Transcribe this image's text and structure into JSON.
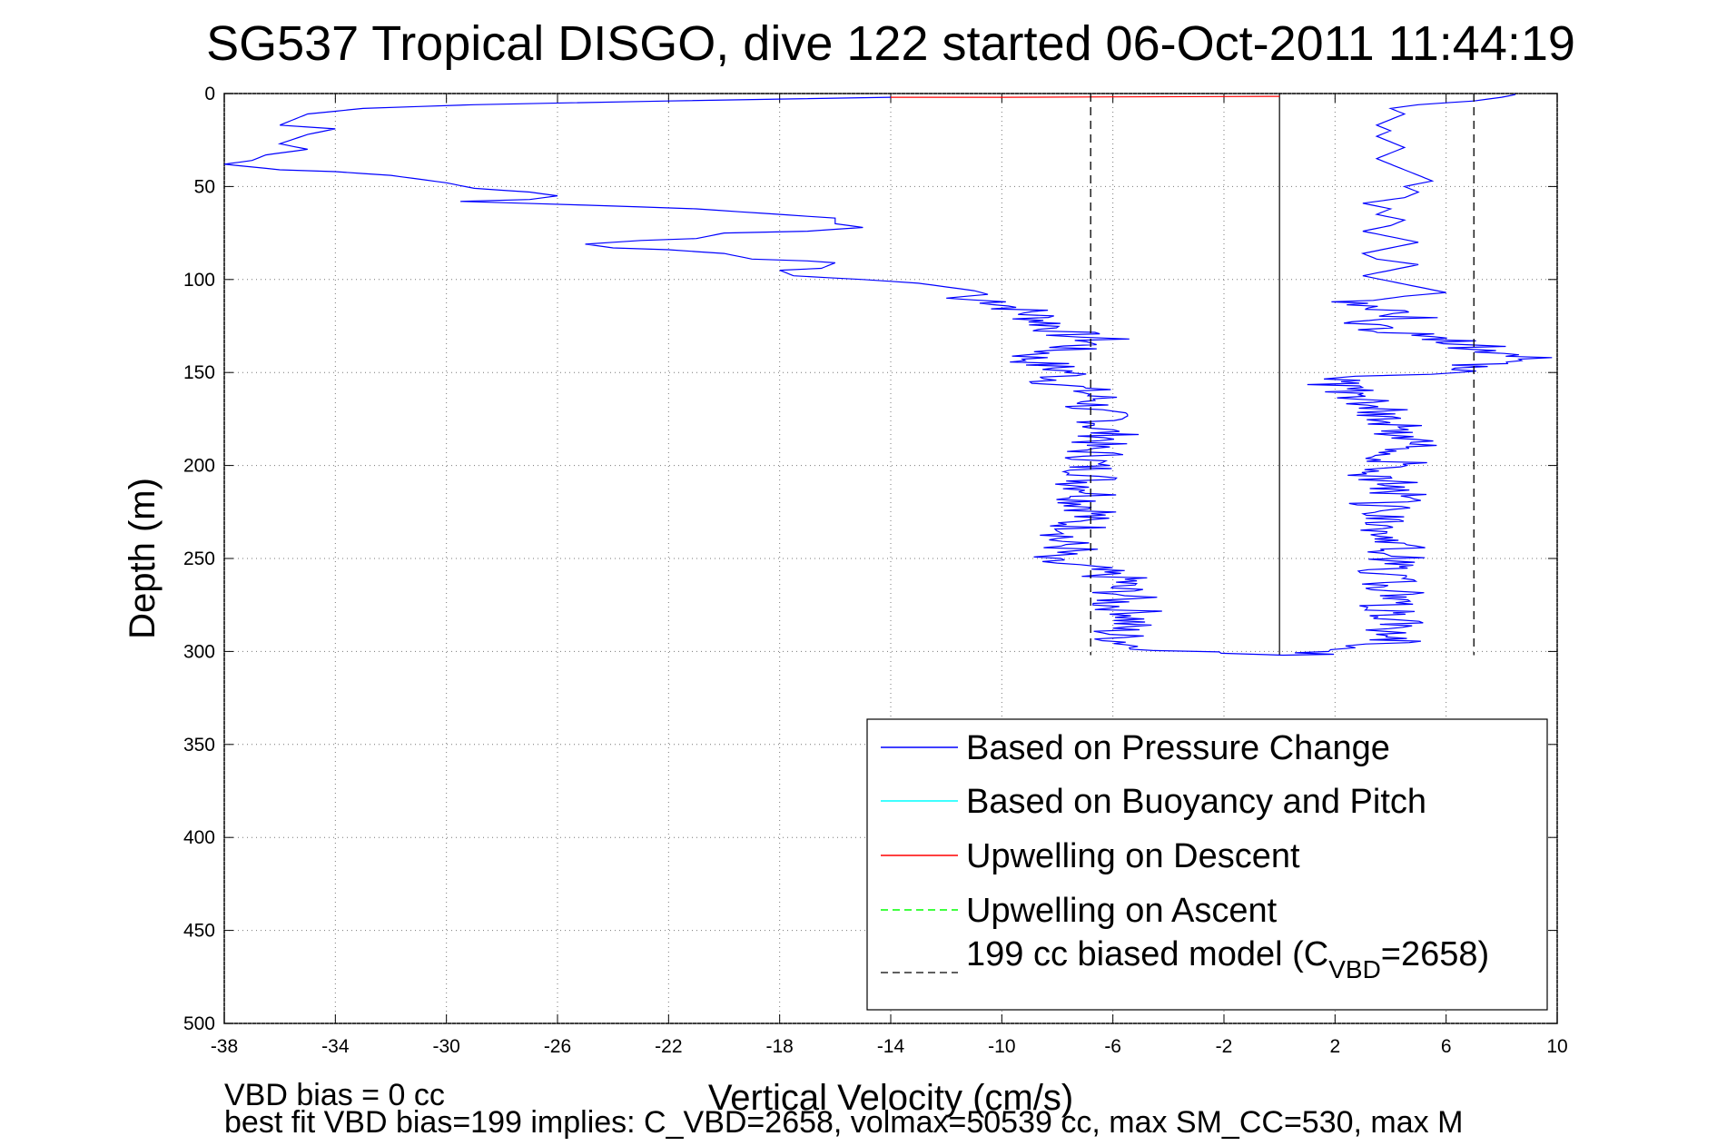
{
  "chart_data": {
    "type": "line",
    "title": "SG537 Tropical DISGO, dive 122 started 06-Oct-2011 11:44:19",
    "xlabel": "Vertical Velocity (cm/s)",
    "ylabel": "Depth (m)",
    "xlim": [
      -38,
      10
    ],
    "ylim": [
      0,
      500
    ],
    "y_reversed": true,
    "grid": true,
    "x_ticks": [
      -38,
      -34,
      -30,
      -26,
      -22,
      -18,
      -14,
      -10,
      -6,
      -2,
      2,
      6,
      10
    ],
    "y_ticks": [
      0,
      50,
      100,
      150,
      200,
      250,
      300,
      350,
      400,
      450,
      500
    ],
    "legend_position": "bottom-right",
    "legend": [
      {
        "label": "Based on Pressure Change",
        "color": "#0000ff",
        "style": "solid"
      },
      {
        "label": "Based on Buoyancy and Pitch",
        "color": "#00ffff",
        "style": "solid"
      },
      {
        "label": "Upwelling on Descent",
        "color": "#ff0000",
        "style": "solid"
      },
      {
        "label": "Upwelling on Ascent",
        "color": "#00ff00",
        "style": "dashed"
      },
      {
        "label_main": "199 cc biased model (C",
        "label_sub": "VBD",
        "label_tail": "=2658)",
        "color": "#000000",
        "style": "dashed"
      }
    ],
    "series": [
      {
        "name": "Based on Pressure Change",
        "color": "#0000ff",
        "points": [
          [
            -14.0,
            2
          ],
          [
            -22,
            4
          ],
          [
            -29,
            6
          ],
          [
            -33,
            8
          ],
          [
            -35,
            11
          ],
          [
            -36,
            17
          ],
          [
            -34,
            19
          ],
          [
            -35,
            22
          ],
          [
            -36,
            27
          ],
          [
            -35,
            30
          ],
          [
            -36.5,
            33
          ],
          [
            -37,
            36
          ],
          [
            -38,
            38
          ],
          [
            -36,
            41
          ],
          [
            -34,
            42
          ],
          [
            -32,
            44
          ],
          [
            -30,
            48
          ],
          [
            -29,
            51
          ],
          [
            -27,
            53
          ],
          [
            -26,
            55
          ],
          [
            -27,
            57
          ],
          [
            -29.5,
            58
          ],
          [
            -25,
            60
          ],
          [
            -21,
            62
          ],
          [
            -17,
            66
          ],
          [
            -16,
            67
          ],
          [
            -16,
            70
          ],
          [
            -15,
            72
          ],
          [
            -17,
            74
          ],
          [
            -20,
            75
          ],
          [
            -21,
            78
          ],
          [
            -23,
            79
          ],
          [
            -25,
            81
          ],
          [
            -24,
            83
          ],
          [
            -22,
            84
          ],
          [
            -20,
            86
          ],
          [
            -19,
            89
          ],
          [
            -17,
            90
          ],
          [
            -16,
            91
          ],
          [
            -16.5,
            94
          ],
          [
            -18,
            95
          ],
          [
            -17.5,
            98
          ],
          [
            -15,
            100
          ],
          [
            -13,
            102
          ],
          [
            -12,
            104
          ],
          [
            -11,
            106
          ],
          [
            -10.5,
            108
          ],
          [
            -12,
            110
          ],
          [
            -10,
            112
          ],
          [
            -9.5,
            115
          ],
          [
            -9,
            118
          ],
          [
            -8.5,
            122
          ],
          [
            -8,
            126
          ],
          [
            -7.5,
            130
          ],
          [
            -6.5,
            132
          ],
          [
            -7,
            135
          ],
          [
            -8,
            138
          ],
          [
            -9,
            142
          ],
          [
            -8.5,
            146
          ],
          [
            -7.5,
            150
          ],
          [
            -8,
            155
          ],
          [
            -7,
            160
          ],
          [
            -6.5,
            165
          ],
          [
            -7,
            170
          ],
          [
            -6,
            175
          ],
          [
            -6.5,
            180
          ],
          [
            -6,
            185
          ],
          [
            -7,
            190
          ],
          [
            -6.5,
            195
          ],
          [
            -7,
            200
          ],
          [
            -6.5,
            205
          ],
          [
            -7,
            210
          ],
          [
            -6.5,
            215
          ],
          [
            -7,
            220
          ],
          [
            -6.5,
            225
          ],
          [
            -7.5,
            230
          ],
          [
            -7,
            235
          ],
          [
            -8,
            240
          ],
          [
            -7.5,
            245
          ],
          [
            -9,
            250
          ],
          [
            -7,
            255
          ],
          [
            -6.5,
            258
          ],
          [
            -5.5,
            262
          ],
          [
            -6,
            265
          ],
          [
            -5.5,
            270
          ],
          [
            -6,
            275
          ],
          [
            -5,
            280
          ],
          [
            -5.5,
            285
          ],
          [
            -6,
            290
          ],
          [
            -5.5,
            295
          ],
          [
            -5,
            298
          ],
          [
            -2,
            301
          ],
          [
            0,
            302
          ],
          [
            1,
            301.5
          ],
          [
            2,
            300
          ],
          [
            3,
            298
          ],
          [
            4,
            296
          ],
          [
            4.5,
            293
          ],
          [
            4,
            290
          ],
          [
            3.5,
            287
          ],
          [
            4.5,
            283
          ],
          [
            4,
            280
          ],
          [
            3.5,
            277
          ],
          [
            4,
            273
          ],
          [
            4.5,
            270
          ],
          [
            3.5,
            266
          ],
          [
            4,
            263
          ],
          [
            4.5,
            260
          ],
          [
            3.5,
            256
          ],
          [
            4,
            252
          ],
          [
            4.5,
            248
          ],
          [
            4,
            245
          ],
          [
            4.5,
            241
          ],
          [
            4,
            238
          ],
          [
            3.5,
            234
          ],
          [
            4.5,
            230
          ],
          [
            4,
            226
          ],
          [
            3.5,
            222
          ],
          [
            4,
            218
          ],
          [
            4.5,
            214
          ],
          [
            4,
            210
          ],
          [
            3.5,
            206
          ],
          [
            4,
            203
          ],
          [
            4.5,
            200
          ],
          [
            4,
            197
          ],
          [
            4.5,
            193
          ],
          [
            5,
            190
          ],
          [
            4.5,
            186
          ],
          [
            4,
            183
          ],
          [
            4.5,
            180
          ],
          [
            4,
            177
          ],
          [
            3.5,
            173
          ],
          [
            4,
            170
          ],
          [
            3.5,
            166
          ],
          [
            3,
            162
          ],
          [
            2.5,
            158
          ],
          [
            1.5,
            155
          ],
          [
            3,
            152
          ],
          [
            6,
            150
          ],
          [
            7,
            146
          ],
          [
            9.5,
            142
          ],
          [
            8,
            139
          ],
          [
            7,
            136
          ],
          [
            6,
            133
          ],
          [
            5,
            130
          ],
          [
            4,
            127
          ],
          [
            3,
            125
          ],
          [
            4,
            122
          ],
          [
            5,
            119
          ],
          [
            4,
            116
          ],
          [
            3,
            112
          ],
          [
            4.5,
            109
          ],
          [
            6,
            107
          ],
          [
            5,
            104
          ],
          [
            4,
            101
          ],
          [
            3,
            98
          ],
          [
            4,
            95
          ],
          [
            5,
            92
          ],
          [
            3.5,
            89
          ],
          [
            3,
            86
          ],
          [
            4,
            83
          ],
          [
            5,
            80
          ],
          [
            4,
            77
          ],
          [
            3,
            74
          ],
          [
            4,
            71
          ],
          [
            4.5,
            68
          ],
          [
            3.5,
            65
          ],
          [
            4,
            62
          ],
          [
            3,
            59
          ],
          [
            4.5,
            56
          ],
          [
            5,
            53
          ],
          [
            4.5,
            50
          ],
          [
            5.5,
            47
          ],
          [
            5,
            44
          ],
          [
            4.5,
            41
          ],
          [
            4,
            38
          ],
          [
            3.5,
            35
          ],
          [
            4,
            32
          ],
          [
            4.5,
            29
          ],
          [
            4,
            26
          ],
          [
            3.5,
            23
          ],
          [
            4,
            20
          ],
          [
            3.5,
            17
          ],
          [
            4,
            14
          ],
          [
            4.5,
            11
          ],
          [
            4,
            8
          ],
          [
            5,
            6
          ],
          [
            7,
            4
          ],
          [
            8,
            2
          ],
          [
            8.5,
            0.5
          ]
        ]
      },
      {
        "name": "Upwelling on Descent",
        "color": "#ff0000",
        "points": [
          [
            -14,
            2
          ],
          [
            -10,
            2
          ],
          [
            -6,
            1.8
          ],
          [
            -2,
            1.6
          ],
          [
            0,
            1.5
          ]
        ]
      },
      {
        "name": "199 cc biased model (CVBD=2658)",
        "color": "#000000",
        "dashed": true,
        "lines": [
          [
            [
              -6.8,
              0
            ],
            [
              -6.8,
              302
            ]
          ],
          [
            [
              7.0,
              0
            ],
            [
              7.0,
              302
            ]
          ]
        ]
      }
    ],
    "zero_line": {
      "x": 0,
      "from": 0,
      "to": 302
    }
  },
  "footer": {
    "line1": "VBD bias = 0 cc",
    "line2": "best fit VBD bias=199 implies: C_VBD=2658, volmax=50539 cc, max SM_CC=530, max M"
  }
}
